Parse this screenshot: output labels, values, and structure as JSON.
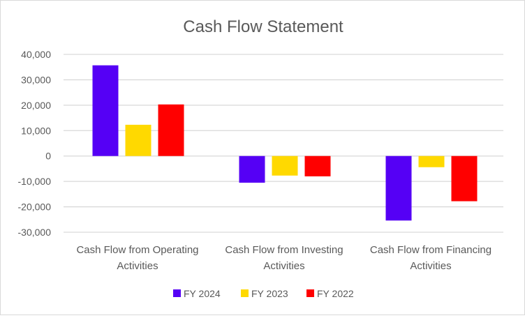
{
  "chart_data": {
    "type": "bar",
    "title": "Cash Flow Statement",
    "categories": [
      [
        "Cash Flow from Operating",
        "Activities"
      ],
      [
        "Cash Flow from Investing",
        "Activities"
      ],
      [
        "Cash Flow from Financing",
        "Activities"
      ]
    ],
    "series": [
      {
        "name": "FY 2024",
        "color": "#5500F5",
        "values": [
          35700,
          -10500,
          -25400
        ]
      },
      {
        "name": "FY 2023",
        "color": "#FFD900",
        "values": [
          12300,
          -7700,
          -4400
        ]
      },
      {
        "name": "FY 2022",
        "color": "#FF0000",
        "values": [
          20300,
          -8000,
          -17800
        ]
      }
    ],
    "ylim": [
      -30000,
      40000
    ],
    "yticks": [
      40000,
      30000,
      20000,
      10000,
      0,
      -10000,
      -20000,
      -30000
    ],
    "ytick_labels": [
      "40,000",
      "30,000",
      "20,000",
      "10,000",
      "0",
      "-10,000",
      "-20,000",
      "-30,000"
    ],
    "grid": true,
    "legend": "bottom"
  }
}
